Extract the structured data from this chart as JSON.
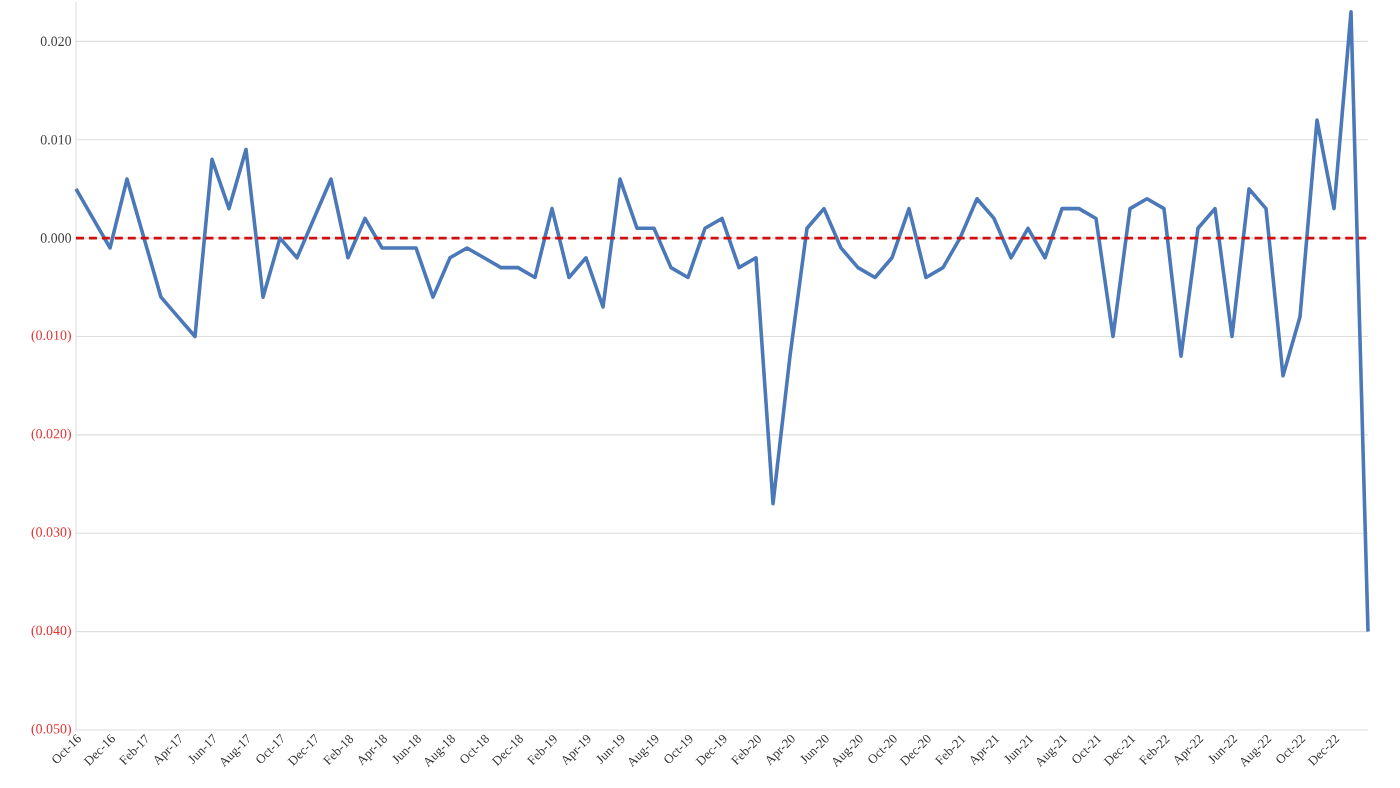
{
  "chart_data": {
    "type": "line",
    "categories": [
      "Oct-16",
      null,
      "Dec-16",
      null,
      "Feb-17",
      null,
      "Apr-17",
      null,
      "Jun-17",
      null,
      "Aug-17",
      null,
      "Oct-17",
      null,
      "Dec-17",
      null,
      "Feb-18",
      null,
      "Apr-18",
      null,
      "Jun-18",
      null,
      "Aug-18",
      null,
      "Oct-18",
      null,
      "Dec-18",
      null,
      "Feb-19",
      null,
      "Apr-19",
      null,
      "Jun-19",
      null,
      "Aug-19",
      null,
      "Oct-19",
      null,
      "Dec-19",
      null,
      "Feb-20",
      null,
      "Apr-20",
      null,
      "Jun-20",
      null,
      "Aug-20",
      null,
      "Oct-20",
      null,
      "Dec-20",
      null,
      "Feb-21",
      null,
      "Apr-21",
      null,
      "Jun-21",
      null,
      "Aug-21",
      null,
      "Oct-21",
      null,
      "Dec-21",
      null,
      "Feb-22",
      null,
      "Apr-22",
      null,
      "Jun-22",
      null,
      "Aug-22",
      null,
      "Oct-22",
      null,
      "Dec-22",
      null,
      null
    ],
    "values": [
      0.005,
      0.002,
      -0.001,
      0.006,
      0.0,
      -0.006,
      -0.008,
      -0.01,
      0.008,
      0.003,
      0.009,
      -0.006,
      0.0,
      -0.002,
      0.002,
      0.006,
      -0.002,
      0.002,
      -0.001,
      -0.001,
      -0.001,
      -0.006,
      -0.002,
      -0.001,
      -0.002,
      -0.003,
      -0.003,
      -0.004,
      0.003,
      -0.004,
      -0.002,
      -0.007,
      0.006,
      0.001,
      0.001,
      -0.003,
      -0.004,
      0.001,
      0.002,
      -0.003,
      -0.002,
      -0.027,
      -0.012,
      0.001,
      0.003,
      -0.001,
      -0.003,
      -0.004,
      -0.002,
      0.003,
      -0.004,
      -0.003,
      0.0,
      0.004,
      0.002,
      -0.002,
      0.001,
      -0.002,
      0.003,
      0.003,
      0.002,
      -0.01,
      0.003,
      0.004,
      0.003,
      -0.012,
      0.001,
      0.003,
      -0.01,
      0.005,
      0.003,
      -0.014,
      -0.008,
      0.012,
      0.003,
      0.023,
      -0.04
    ],
    "color": "#4a78b8",
    "line_style": "solid",
    "ylim": [
      -0.05,
      0.024
    ],
    "yticks": [
      {
        "value": 0.02,
        "label": "0.020"
      },
      {
        "value": 0.01,
        "label": "0.010"
      },
      {
        "value": 0,
        "label": "0.000"
      },
      {
        "value": -0.01,
        "label": "(0.010)"
      },
      {
        "value": -0.02,
        "label": "(0.020)"
      },
      {
        "value": -0.03,
        "label": "(0.030)"
      },
      {
        "value": -0.04,
        "label": "(0.040)"
      },
      {
        "value": -0.05,
        "label": "(0.050)"
      }
    ],
    "grid": "y",
    "ref_lines": [
      {
        "axis": "y",
        "value": 0,
        "color": "#d01010",
        "line_style": "dashed"
      }
    ]
  }
}
